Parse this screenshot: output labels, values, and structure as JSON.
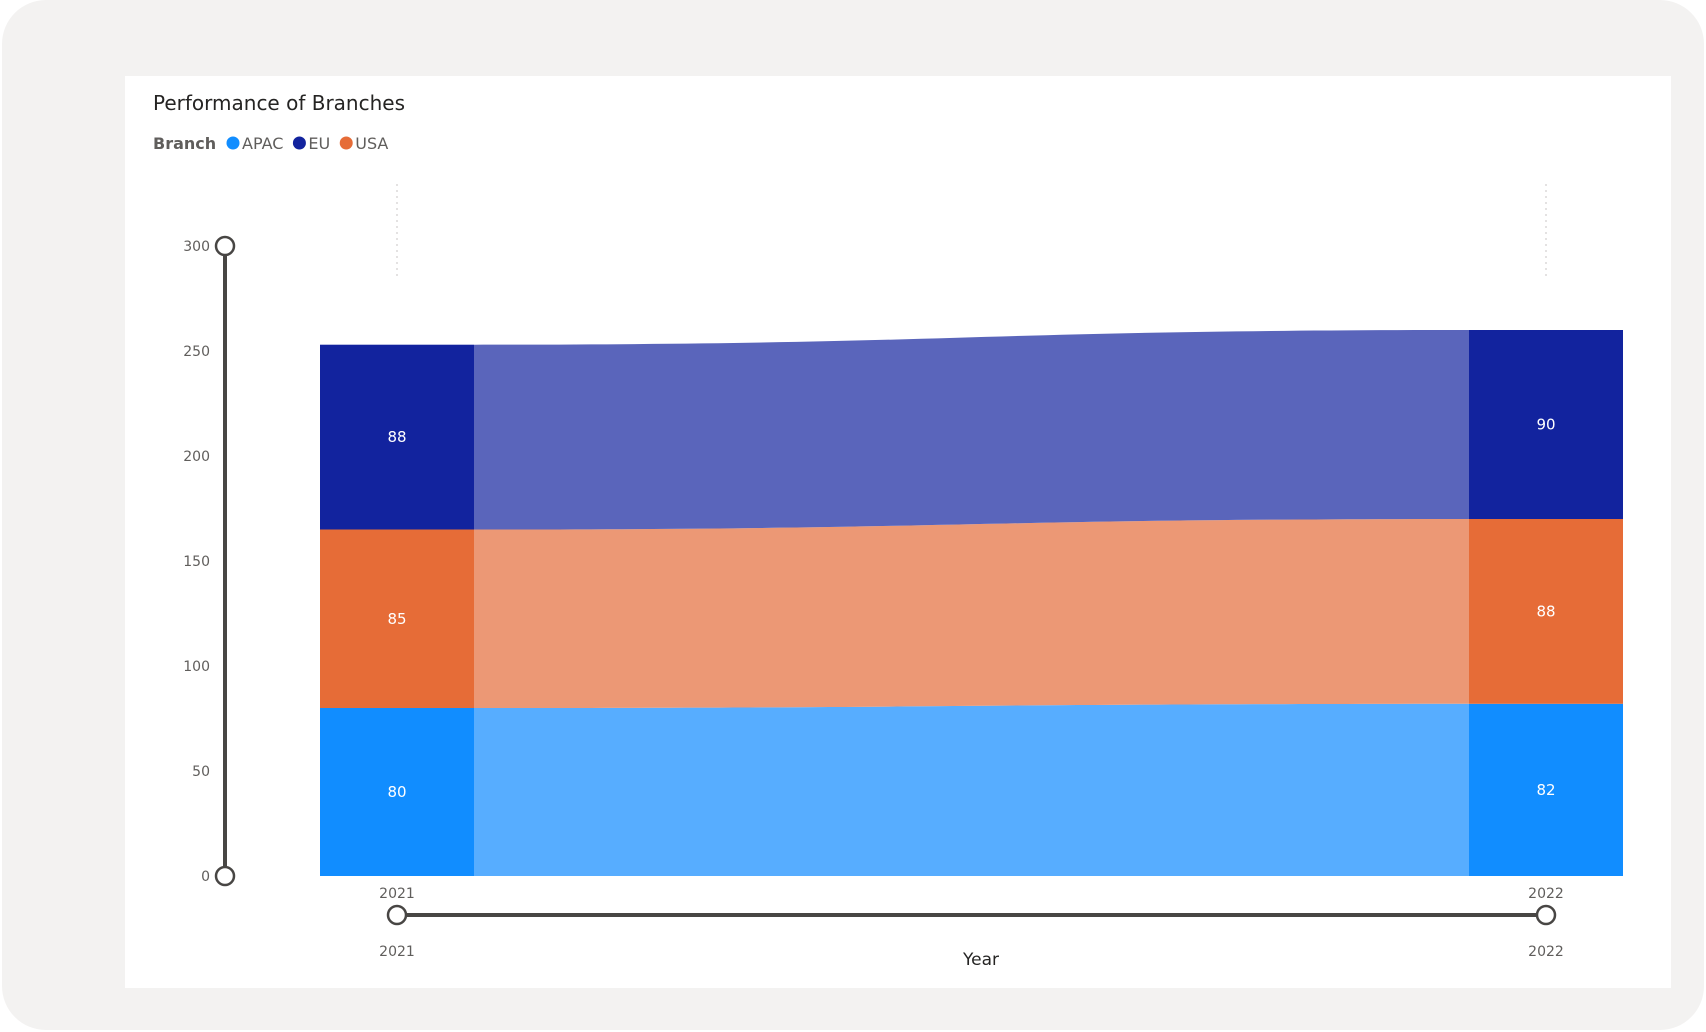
{
  "chart_data": {
    "type": "ribbon",
    "title": "Performance of Branches",
    "legend": {
      "title": "Branch",
      "position": "top-left",
      "entries": [
        {
          "name": "APAC",
          "color": "#118dff"
        },
        {
          "name": "EU",
          "color": "#12239e"
        },
        {
          "name": "USA",
          "color": "#e66c37"
        }
      ]
    },
    "categories": [
      "2021",
      "2022"
    ],
    "series": [
      {
        "name": "APAC",
        "values": [
          80,
          82
        ],
        "color": "#118dff",
        "ribbon_color": "#57adff"
      },
      {
        "name": "USA",
        "values": [
          85,
          88
        ],
        "color": "#e66c37",
        "ribbon_color": "#ec9875"
      },
      {
        "name": "EU",
        "values": [
          88,
          90
        ],
        "color": "#12239e",
        "ribbon_color": "#5a65bb"
      }
    ],
    "y_ticks": [
      "0",
      "50",
      "100",
      "150",
      "200",
      "250",
      "300"
    ],
    "ylim": [
      0,
      300
    ],
    "xlabel": "Year",
    "ylabel": "",
    "x_slider": {
      "start": "2021",
      "end": "2022"
    },
    "grid": false
  }
}
